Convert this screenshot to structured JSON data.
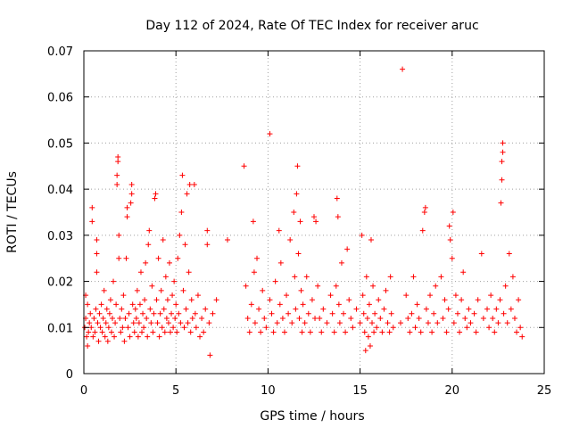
{
  "chart_data": {
    "type": "scatter",
    "title": "Day 112 of 2024, Rate Of TEC Index for receiver aruc",
    "xlabel": "GPS time / hours",
    "ylabel": "ROTI / TECUs",
    "xlim": [
      0,
      25
    ],
    "ylim": [
      0,
      0.07
    ],
    "x_ticks": [
      0,
      5,
      10,
      15,
      20,
      25
    ],
    "x_tick_labels": [
      "0",
      "5",
      "10",
      "15",
      "20",
      "25"
    ],
    "y_ticks": [
      0,
      0.01,
      0.02,
      0.03,
      0.04,
      0.05,
      0.06,
      0.07
    ],
    "y_tick_labels": [
      "0",
      "0.01",
      "0.02",
      "0.03",
      "0.04",
      "0.05",
      "0.06",
      "0.07"
    ],
    "grid": true,
    "marker": "plus",
    "point_color": "#ff0000",
    "series": [
      {
        "points": [
          [
            0.05,
            0.01
          ],
          [
            0.1,
            0.012
          ],
          [
            0.15,
            0.008
          ],
          [
            0.2,
            0.015
          ],
          [
            0.25,
            0.009
          ],
          [
            0.3,
            0.011
          ],
          [
            0.1,
            0.017
          ],
          [
            0.2,
            0.006
          ],
          [
            0.35,
            0.013
          ],
          [
            0.4,
            0.01
          ],
          [
            0.45,
            0.033
          ],
          [
            0.45,
            0.036
          ],
          [
            0.5,
            0.008
          ],
          [
            0.55,
            0.012
          ],
          [
            0.6,
            0.009
          ],
          [
            0.65,
            0.014
          ],
          [
            0.7,
            0.022
          ],
          [
            0.7,
            0.026
          ],
          [
            0.7,
            0.029
          ],
          [
            0.75,
            0.011
          ],
          [
            0.8,
            0.007
          ],
          [
            0.85,
            0.013
          ],
          [
            0.9,
            0.01
          ],
          [
            0.95,
            0.015
          ],
          [
            1.0,
            0.009
          ],
          [
            1.05,
            0.012
          ],
          [
            1.1,
            0.018
          ],
          [
            1.15,
            0.008
          ],
          [
            1.2,
            0.011
          ],
          [
            1.25,
            0.014
          ],
          [
            1.3,
            0.007
          ],
          [
            1.35,
            0.01
          ],
          [
            1.4,
            0.013
          ],
          [
            1.45,
            0.016
          ],
          [
            1.5,
            0.009
          ],
          [
            1.55,
            0.012
          ],
          [
            1.6,
            0.02
          ],
          [
            1.65,
            0.008
          ],
          [
            1.7,
            0.011
          ],
          [
            1.75,
            0.015
          ],
          [
            1.8,
            0.041
          ],
          [
            1.8,
            0.043
          ],
          [
            1.85,
            0.046
          ],
          [
            1.85,
            0.047
          ],
          [
            1.9,
            0.03
          ],
          [
            1.9,
            0.025
          ],
          [
            1.95,
            0.012
          ],
          [
            2.0,
            0.009
          ],
          [
            2.05,
            0.014
          ],
          [
            2.1,
            0.01
          ],
          [
            2.15,
            0.017
          ],
          [
            2.2,
            0.007
          ],
          [
            2.25,
            0.012
          ],
          [
            2.3,
            0.025
          ],
          [
            2.35,
            0.034
          ],
          [
            2.35,
            0.036
          ],
          [
            2.4,
            0.01
          ],
          [
            2.45,
            0.013
          ],
          [
            2.5,
            0.008
          ],
          [
            2.55,
            0.037
          ],
          [
            2.6,
            0.039
          ],
          [
            2.6,
            0.041
          ],
          [
            2.65,
            0.015
          ],
          [
            2.7,
            0.011
          ],
          [
            2.75,
            0.009
          ],
          [
            2.8,
            0.014
          ],
          [
            2.85,
            0.012
          ],
          [
            2.9,
            0.018
          ],
          [
            2.95,
            0.008
          ],
          [
            3.0,
            0.011
          ],
          [
            3.05,
            0.015
          ],
          [
            3.1,
            0.022
          ],
          [
            3.15,
            0.009
          ],
          [
            3.2,
            0.013
          ],
          [
            3.25,
            0.01
          ],
          [
            3.3,
            0.016
          ],
          [
            3.35,
            0.024
          ],
          [
            3.4,
            0.012
          ],
          [
            3.45,
            0.008
          ],
          [
            3.5,
            0.028
          ],
          [
            3.55,
            0.031
          ],
          [
            3.6,
            0.014
          ],
          [
            3.65,
            0.011
          ],
          [
            3.7,
            0.019
          ],
          [
            3.75,
            0.009
          ],
          [
            3.8,
            0.013
          ],
          [
            3.85,
            0.038
          ],
          [
            3.9,
            0.039
          ],
          [
            3.95,
            0.016
          ],
          [
            4.0,
            0.011
          ],
          [
            4.05,
            0.025
          ],
          [
            4.1,
            0.008
          ],
          [
            4.15,
            0.013
          ],
          [
            4.2,
            0.018
          ],
          [
            4.25,
            0.01
          ],
          [
            4.3,
            0.029
          ],
          [
            4.35,
            0.014
          ],
          [
            4.4,
            0.009
          ],
          [
            4.45,
            0.021
          ],
          [
            4.5,
            0.012
          ],
          [
            4.55,
            0.016
          ],
          [
            4.6,
            0.011
          ],
          [
            4.65,
            0.024
          ],
          [
            4.7,
            0.009
          ],
          [
            4.75,
            0.013
          ],
          [
            4.8,
            0.017
          ],
          [
            4.85,
            0.01
          ],
          [
            4.9,
            0.02
          ],
          [
            4.95,
            0.012
          ],
          [
            5.0,
            0.015
          ],
          [
            5.05,
            0.009
          ],
          [
            5.1,
            0.025
          ],
          [
            5.15,
            0.013
          ],
          [
            5.2,
            0.03
          ],
          [
            5.25,
            0.011
          ],
          [
            5.3,
            0.035
          ],
          [
            5.35,
            0.043
          ],
          [
            5.4,
            0.018
          ],
          [
            5.45,
            0.01
          ],
          [
            5.5,
            0.028
          ],
          [
            5.55,
            0.014
          ],
          [
            5.6,
            0.039
          ],
          [
            5.65,
            0.011
          ],
          [
            5.7,
            0.022
          ],
          [
            5.75,
            0.041
          ],
          [
            5.8,
            0.009
          ],
          [
            5.85,
            0.016
          ],
          [
            5.9,
            0.012
          ],
          [
            6.0,
            0.041
          ],
          [
            6.05,
            0.013
          ],
          [
            6.1,
            0.01
          ],
          [
            6.2,
            0.017
          ],
          [
            6.3,
            0.008
          ],
          [
            6.4,
            0.012
          ],
          [
            6.5,
            0.009
          ],
          [
            6.6,
            0.014
          ],
          [
            6.7,
            0.028
          ],
          [
            6.7,
            0.031
          ],
          [
            6.8,
            0.011
          ],
          [
            6.85,
            0.004
          ],
          [
            7.0,
            0.013
          ],
          [
            7.2,
            0.016
          ],
          [
            7.8,
            0.029
          ],
          [
            8.7,
            0.045
          ],
          [
            8.8,
            0.019
          ],
          [
            8.9,
            0.012
          ],
          [
            9.0,
            0.009
          ],
          [
            9.1,
            0.015
          ],
          [
            9.2,
            0.033
          ],
          [
            9.25,
            0.022
          ],
          [
            9.3,
            0.011
          ],
          [
            9.4,
            0.025
          ],
          [
            9.5,
            0.014
          ],
          [
            9.6,
            0.009
          ],
          [
            9.7,
            0.018
          ],
          [
            9.8,
            0.012
          ],
          [
            9.9,
            0.01
          ],
          [
            10.1,
            0.052
          ],
          [
            10.1,
            0.016
          ],
          [
            10.2,
            0.013
          ],
          [
            10.3,
            0.009
          ],
          [
            10.4,
            0.02
          ],
          [
            10.5,
            0.011
          ],
          [
            10.6,
            0.031
          ],
          [
            10.65,
            0.015
          ],
          [
            10.7,
            0.024
          ],
          [
            10.8,
            0.012
          ],
          [
            10.9,
            0.009
          ],
          [
            11.0,
            0.017
          ],
          [
            11.1,
            0.013
          ],
          [
            11.2,
            0.029
          ],
          [
            11.3,
            0.011
          ],
          [
            11.4,
            0.035
          ],
          [
            11.45,
            0.021
          ],
          [
            11.5,
            0.014
          ],
          [
            11.55,
            0.039
          ],
          [
            11.6,
            0.045
          ],
          [
            11.65,
            0.026
          ],
          [
            11.7,
            0.012
          ],
          [
            11.75,
            0.033
          ],
          [
            11.8,
            0.018
          ],
          [
            11.85,
            0.009
          ],
          [
            11.9,
            0.015
          ],
          [
            12.0,
            0.011
          ],
          [
            12.1,
            0.021
          ],
          [
            12.2,
            0.013
          ],
          [
            12.3,
            0.009
          ],
          [
            12.4,
            0.016
          ],
          [
            12.5,
            0.034
          ],
          [
            12.55,
            0.012
          ],
          [
            12.6,
            0.033
          ],
          [
            12.7,
            0.019
          ],
          [
            12.8,
            0.012
          ],
          [
            12.9,
            0.009
          ],
          [
            13.0,
            0.014
          ],
          [
            13.2,
            0.011
          ],
          [
            13.4,
            0.017
          ],
          [
            13.5,
            0.013
          ],
          [
            13.6,
            0.009
          ],
          [
            13.7,
            0.019
          ],
          [
            13.75,
            0.038
          ],
          [
            13.8,
            0.034
          ],
          [
            13.85,
            0.015
          ],
          [
            13.9,
            0.011
          ],
          [
            14.0,
            0.024
          ],
          [
            14.1,
            0.013
          ],
          [
            14.2,
            0.009
          ],
          [
            14.3,
            0.027
          ],
          [
            14.4,
            0.016
          ],
          [
            14.5,
            0.012
          ],
          [
            14.6,
            0.01
          ],
          [
            14.8,
            0.014
          ],
          [
            15.0,
            0.011
          ],
          [
            15.1,
            0.03
          ],
          [
            15.15,
            0.017
          ],
          [
            15.2,
            0.013
          ],
          [
            15.25,
            0.009
          ],
          [
            15.3,
            0.005
          ],
          [
            15.35,
            0.021
          ],
          [
            15.4,
            0.012
          ],
          [
            15.45,
            0.008
          ],
          [
            15.5,
            0.015
          ],
          [
            15.55,
            0.006
          ],
          [
            15.6,
            0.029
          ],
          [
            15.65,
            0.011
          ],
          [
            15.7,
            0.019
          ],
          [
            15.75,
            0.009
          ],
          [
            15.8,
            0.013
          ],
          [
            15.9,
            0.01
          ],
          [
            16.0,
            0.016
          ],
          [
            16.1,
            0.012
          ],
          [
            16.2,
            0.009
          ],
          [
            16.3,
            0.014
          ],
          [
            16.4,
            0.018
          ],
          [
            16.5,
            0.011
          ],
          [
            16.6,
            0.009
          ],
          [
            16.65,
            0.021
          ],
          [
            16.7,
            0.013
          ],
          [
            16.8,
            0.01
          ],
          [
            17.2,
            0.011
          ],
          [
            17.3,
            0.066
          ],
          [
            17.5,
            0.017
          ],
          [
            17.6,
            0.012
          ],
          [
            17.7,
            0.009
          ],
          [
            17.8,
            0.013
          ],
          [
            17.9,
            0.021
          ],
          [
            18.0,
            0.01
          ],
          [
            18.1,
            0.015
          ],
          [
            18.2,
            0.012
          ],
          [
            18.3,
            0.009
          ],
          [
            18.4,
            0.031
          ],
          [
            18.5,
            0.035
          ],
          [
            18.55,
            0.036
          ],
          [
            18.6,
            0.014
          ],
          [
            18.7,
            0.011
          ],
          [
            18.8,
            0.017
          ],
          [
            18.9,
            0.009
          ],
          [
            19.0,
            0.013
          ],
          [
            19.1,
            0.019
          ],
          [
            19.2,
            0.011
          ],
          [
            19.4,
            0.021
          ],
          [
            19.5,
            0.012
          ],
          [
            19.6,
            0.016
          ],
          [
            19.7,
            0.009
          ],
          [
            19.8,
            0.014
          ],
          [
            19.85,
            0.032
          ],
          [
            19.9,
            0.029
          ],
          [
            20.0,
            0.025
          ],
          [
            20.05,
            0.035
          ],
          [
            20.1,
            0.011
          ],
          [
            20.2,
            0.017
          ],
          [
            20.3,
            0.013
          ],
          [
            20.4,
            0.009
          ],
          [
            20.5,
            0.016
          ],
          [
            20.6,
            0.022
          ],
          [
            20.7,
            0.012
          ],
          [
            20.8,
            0.01
          ],
          [
            20.9,
            0.014
          ],
          [
            21.0,
            0.011
          ],
          [
            21.2,
            0.013
          ],
          [
            21.3,
            0.009
          ],
          [
            21.4,
            0.016
          ],
          [
            21.6,
            0.026
          ],
          [
            21.7,
            0.012
          ],
          [
            21.9,
            0.014
          ],
          [
            22.0,
            0.01
          ],
          [
            22.1,
            0.017
          ],
          [
            22.2,
            0.012
          ],
          [
            22.3,
            0.009
          ],
          [
            22.4,
            0.014
          ],
          [
            22.5,
            0.011
          ],
          [
            22.6,
            0.016
          ],
          [
            22.65,
            0.037
          ],
          [
            22.7,
            0.042
          ],
          [
            22.7,
            0.046
          ],
          [
            22.75,
            0.048
          ],
          [
            22.75,
            0.05
          ],
          [
            22.8,
            0.013
          ],
          [
            22.9,
            0.019
          ],
          [
            23.0,
            0.011
          ],
          [
            23.1,
            0.026
          ],
          [
            23.2,
            0.014
          ],
          [
            23.3,
            0.021
          ],
          [
            23.4,
            0.012
          ],
          [
            23.5,
            0.009
          ],
          [
            23.6,
            0.016
          ],
          [
            23.7,
            0.01
          ],
          [
            23.8,
            0.008
          ]
        ]
      }
    ]
  }
}
